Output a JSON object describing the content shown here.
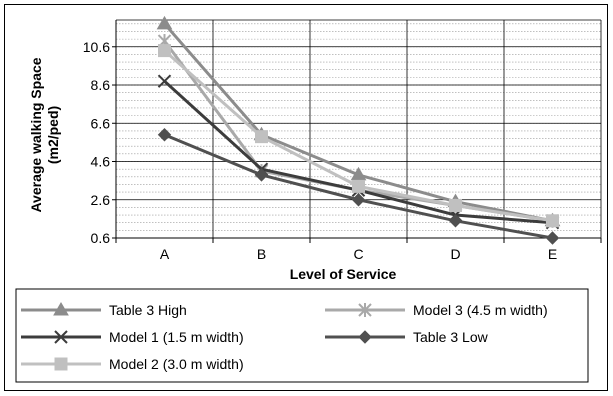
{
  "chart_data": {
    "type": "line",
    "categories": [
      "A",
      "B",
      "C",
      "D",
      "E"
    ],
    "xlabel": "Level of Service",
    "ylabel_line1": "Average walking Space",
    "ylabel_line2": "(m2/ped)",
    "y_ticks": [
      "0.6",
      "2.6",
      "4.6",
      "6.6",
      "8.6",
      "10.6"
    ],
    "ylim": [
      0.6,
      12.0
    ],
    "grid": true,
    "legend_position": "bottom",
    "series": [
      {
        "name": "Table 3 High",
        "values": [
          11.8,
          6.0,
          3.9,
          2.5,
          1.5
        ],
        "color": "#8c8c8c",
        "marker": "triangle",
        "icon": "triangle-marker-icon"
      },
      {
        "name": "Model 3 (4.5 m width)",
        "values": [
          10.9,
          4.1,
          3.1,
          2.3,
          1.5
        ],
        "color": "#a9a9a9",
        "marker": "asterisk",
        "icon": "asterisk-marker-icon"
      },
      {
        "name": "Model 1 (1.5 m width)",
        "values": [
          8.8,
          4.2,
          3.1,
          1.8,
          1.4
        ],
        "color": "#3c3c3c",
        "marker": "x",
        "icon": "x-marker-icon"
      },
      {
        "name": "Table 3 Low",
        "values": [
          6.0,
          3.9,
          2.6,
          1.5,
          0.6
        ],
        "color": "#505050",
        "marker": "diamond",
        "icon": "diamond-marker-icon"
      },
      {
        "name": "Model 2 (3.0 m width)",
        "values": [
          10.4,
          5.9,
          3.3,
          2.3,
          1.5
        ],
        "color": "#c0c0c0",
        "marker": "square",
        "icon": "square-marker-icon"
      }
    ]
  }
}
